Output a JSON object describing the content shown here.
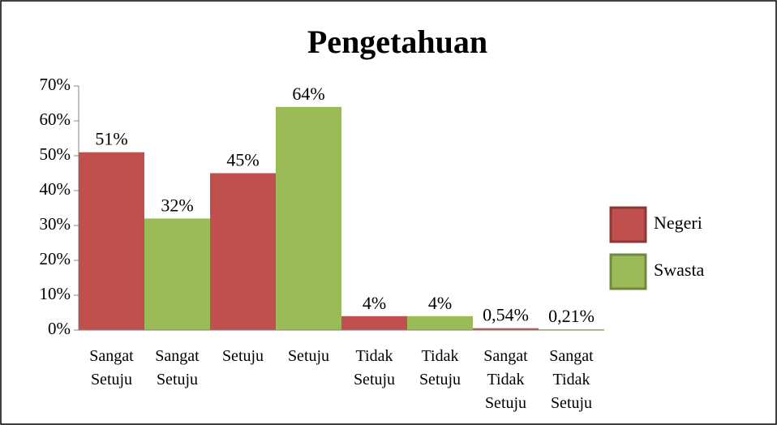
{
  "chart_data": {
    "type": "bar",
    "title": "Pengetahuan",
    "categories": [
      "Sangat Setuju",
      "Sangat Setuju",
      "Setuju",
      "Setuju",
      "Tidak Setuju",
      "Tidak Setuju",
      "Sangat Tidak Setuju",
      "Sangat Tidak Setuju"
    ],
    "series": [
      {
        "name": "Negeri",
        "color": "#c0504d",
        "values": [
          51,
          null,
          45,
          null,
          4,
          null,
          0.54,
          null
        ],
        "value_labels": [
          "51%",
          null,
          "45%",
          null,
          "4%",
          null,
          "0,54%",
          null
        ]
      },
      {
        "name": "Swasta",
        "color": "#9bbb59",
        "values": [
          null,
          32,
          null,
          64,
          null,
          4,
          null,
          0.21
        ],
        "value_labels": [
          null,
          "32%",
          null,
          "64%",
          null,
          "4%",
          null,
          "0,21%"
        ]
      }
    ],
    "ylim": [
      0,
      70
    ],
    "yticks": [
      {
        "value": 0,
        "label": "0%"
      },
      {
        "value": 10,
        "label": "10%"
      },
      {
        "value": 20,
        "label": "20%"
      },
      {
        "value": 30,
        "label": "30%"
      },
      {
        "value": 40,
        "label": "40%"
      },
      {
        "value": 50,
        "label": "50%"
      },
      {
        "value": 60,
        "label": "60%"
      },
      {
        "value": 70,
        "label": "70%"
      }
    ],
    "legend": "right"
  }
}
